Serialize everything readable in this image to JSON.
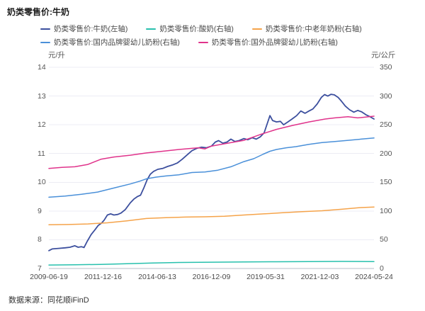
{
  "title": "奶类零售价:牛奶",
  "source": "数据来源：同花顺iFinD",
  "axes": {
    "left_unit": "元/升",
    "right_unit": "元/公斤",
    "left_ticks": [
      14,
      13,
      12,
      11,
      10,
      9,
      8,
      7
    ],
    "right_ticks": [
      350,
      300,
      250,
      200,
      150,
      100,
      50,
      0
    ],
    "left_range": [
      7,
      14
    ],
    "right_range": [
      0,
      350
    ],
    "x_tick_labels": [
      "2009-06-19",
      "2011-12-16",
      "2014-06-13",
      "2016-12-09",
      "2019-05-31",
      "2021-12-03",
      "2024-05-24"
    ]
  },
  "colors": {
    "grid": "#ECECF4",
    "axis_line": "#B6BDC9",
    "milk": "#3C4F9E",
    "yogurt": "#27C0AD",
    "elderly_powder": "#F5A34A",
    "domestic_infant": "#4A90D9",
    "foreign_infant": "#E0338B"
  },
  "chart_data": {
    "type": "line",
    "title": "奶类零售价:牛奶",
    "x_range_dates": [
      "2009-06-19",
      "2024-05-24"
    ],
    "x_note": "points use t = fraction of date range 2009-06-19 (0) to 2024-05-24 (1); weekly series approximated by keypoints",
    "grid": "horizontal-only",
    "legend_position": "top",
    "left_axis": {
      "unit": "元/升",
      "min": 7,
      "max": 14
    },
    "right_axis": {
      "unit": "元/公斤",
      "min": 0,
      "max": 350
    },
    "series": [
      {
        "name": "奶类零售价:牛奶(左轴)",
        "axis": "left",
        "color": "#3C4F9E",
        "points": [
          [
            0.0,
            7.62
          ],
          [
            0.01,
            7.68
          ],
          [
            0.03,
            7.7
          ],
          [
            0.05,
            7.72
          ],
          [
            0.065,
            7.74
          ],
          [
            0.08,
            7.79
          ],
          [
            0.09,
            7.74
          ],
          [
            0.1,
            7.76
          ],
          [
            0.108,
            7.73
          ],
          [
            0.118,
            7.95
          ],
          [
            0.13,
            8.18
          ],
          [
            0.142,
            8.35
          ],
          [
            0.152,
            8.5
          ],
          [
            0.162,
            8.58
          ],
          [
            0.17,
            8.68
          ],
          [
            0.18,
            8.86
          ],
          [
            0.19,
            8.9
          ],
          [
            0.2,
            8.86
          ],
          [
            0.212,
            8.88
          ],
          [
            0.222,
            8.93
          ],
          [
            0.235,
            9.05
          ],
          [
            0.25,
            9.28
          ],
          [
            0.262,
            9.42
          ],
          [
            0.272,
            9.5
          ],
          [
            0.282,
            9.55
          ],
          [
            0.292,
            9.8
          ],
          [
            0.302,
            10.08
          ],
          [
            0.312,
            10.28
          ],
          [
            0.322,
            10.38
          ],
          [
            0.335,
            10.45
          ],
          [
            0.35,
            10.48
          ],
          [
            0.365,
            10.55
          ],
          [
            0.38,
            10.6
          ],
          [
            0.395,
            10.67
          ],
          [
            0.41,
            10.8
          ],
          [
            0.425,
            10.95
          ],
          [
            0.44,
            11.1
          ],
          [
            0.455,
            11.18
          ],
          [
            0.47,
            11.22
          ],
          [
            0.485,
            11.2
          ],
          [
            0.5,
            11.26
          ],
          [
            0.512,
            11.4
          ],
          [
            0.522,
            11.45
          ],
          [
            0.535,
            11.36
          ],
          [
            0.548,
            11.4
          ],
          [
            0.56,
            11.5
          ],
          [
            0.572,
            11.42
          ],
          [
            0.585,
            11.45
          ],
          [
            0.6,
            11.52
          ],
          [
            0.612,
            11.48
          ],
          [
            0.625,
            11.55
          ],
          [
            0.638,
            11.5
          ],
          [
            0.65,
            11.58
          ],
          [
            0.662,
            11.72
          ],
          [
            0.672,
            12.05
          ],
          [
            0.68,
            12.32
          ],
          [
            0.688,
            12.15
          ],
          [
            0.7,
            12.1
          ],
          [
            0.712,
            12.12
          ],
          [
            0.722,
            12.0
          ],
          [
            0.735,
            12.1
          ],
          [
            0.748,
            12.2
          ],
          [
            0.762,
            12.32
          ],
          [
            0.775,
            12.48
          ],
          [
            0.788,
            12.4
          ],
          [
            0.8,
            12.48
          ],
          [
            0.812,
            12.55
          ],
          [
            0.825,
            12.72
          ],
          [
            0.838,
            12.95
          ],
          [
            0.848,
            13.05
          ],
          [
            0.858,
            13.0
          ],
          [
            0.868,
            13.06
          ],
          [
            0.878,
            13.04
          ],
          [
            0.89,
            12.95
          ],
          [
            0.9,
            12.82
          ],
          [
            0.912,
            12.65
          ],
          [
            0.925,
            12.52
          ],
          [
            0.938,
            12.44
          ],
          [
            0.95,
            12.5
          ],
          [
            0.962,
            12.45
          ],
          [
            0.975,
            12.35
          ],
          [
            0.988,
            12.28
          ],
          [
            1.0,
            12.2
          ]
        ]
      },
      {
        "name": "奶类零售价:酸奶(右轴)",
        "axis": "right",
        "color": "#27C0AD",
        "points": [
          [
            0.0,
            6.0
          ],
          [
            0.08,
            6.4
          ],
          [
            0.16,
            7.2
          ],
          [
            0.24,
            8.4
          ],
          [
            0.32,
            9.6
          ],
          [
            0.4,
            10.5
          ],
          [
            0.5,
            11.0
          ],
          [
            0.6,
            11.4
          ],
          [
            0.7,
            11.7
          ],
          [
            0.8,
            12.1
          ],
          [
            0.9,
            12.3
          ],
          [
            1.0,
            12.1
          ]
        ]
      },
      {
        "name": "奶类零售价:中老年奶粉(右轴)",
        "axis": "right",
        "color": "#F5A34A",
        "points": [
          [
            0.0,
            76.0
          ],
          [
            0.06,
            76.5
          ],
          [
            0.12,
            77.5
          ],
          [
            0.18,
            79.5
          ],
          [
            0.24,
            83.0
          ],
          [
            0.3,
            87.0
          ],
          [
            0.36,
            88.5
          ],
          [
            0.42,
            89.5
          ],
          [
            0.48,
            90.0
          ],
          [
            0.54,
            91.0
          ],
          [
            0.6,
            93.0
          ],
          [
            0.66,
            95.0
          ],
          [
            0.72,
            97.0
          ],
          [
            0.78,
            99.0
          ],
          [
            0.84,
            100.5
          ],
          [
            0.9,
            103.0
          ],
          [
            0.96,
            106.0
          ],
          [
            1.0,
            107.0
          ]
        ]
      },
      {
        "name": "奶类零售价:国内品牌婴幼儿奶粉(右轴)",
        "axis": "right",
        "color": "#4A90D9",
        "points": [
          [
            0.0,
            124.0
          ],
          [
            0.05,
            126.0
          ],
          [
            0.1,
            129.0
          ],
          [
            0.15,
            133.0
          ],
          [
            0.2,
            140.0
          ],
          [
            0.25,
            147.0
          ],
          [
            0.28,
            152.0
          ],
          [
            0.3,
            156.0
          ],
          [
            0.33,
            159.0
          ],
          [
            0.36,
            161.0
          ],
          [
            0.4,
            163.0
          ],
          [
            0.44,
            167.0
          ],
          [
            0.48,
            168.0
          ],
          [
            0.52,
            171.0
          ],
          [
            0.56,
            177.0
          ],
          [
            0.6,
            186.0
          ],
          [
            0.63,
            191.0
          ],
          [
            0.66,
            199.0
          ],
          [
            0.68,
            204.0
          ],
          [
            0.7,
            207.0
          ],
          [
            0.73,
            210.0
          ],
          [
            0.76,
            212.0
          ],
          [
            0.8,
            216.0
          ],
          [
            0.84,
            219.0
          ],
          [
            0.88,
            221.0
          ],
          [
            0.92,
            223.0
          ],
          [
            0.96,
            225.0
          ],
          [
            1.0,
            227.0
          ]
        ]
      },
      {
        "name": "奶类零售价:国外品牌婴幼儿奶粉(右轴)",
        "axis": "right",
        "color": "#E0338B",
        "points": [
          [
            0.0,
            174.0
          ],
          [
            0.04,
            176.0
          ],
          [
            0.08,
            177.0
          ],
          [
            0.12,
            181.0
          ],
          [
            0.16,
            190.0
          ],
          [
            0.2,
            194.0
          ],
          [
            0.25,
            197.0
          ],
          [
            0.3,
            201.0
          ],
          [
            0.35,
            204.0
          ],
          [
            0.4,
            207.0
          ],
          [
            0.44,
            209.0
          ],
          [
            0.46,
            210.0
          ],
          [
            0.48,
            208.0
          ],
          [
            0.5,
            213.0
          ],
          [
            0.55,
            218.0
          ],
          [
            0.6,
            223.0
          ],
          [
            0.65,
            233.0
          ],
          [
            0.7,
            242.0
          ],
          [
            0.75,
            249.0
          ],
          [
            0.8,
            255.0
          ],
          [
            0.85,
            260.0
          ],
          [
            0.88,
            262.0
          ],
          [
            0.92,
            264.0
          ],
          [
            0.95,
            262.0
          ],
          [
            1.0,
            265.0
          ]
        ]
      }
    ]
  }
}
